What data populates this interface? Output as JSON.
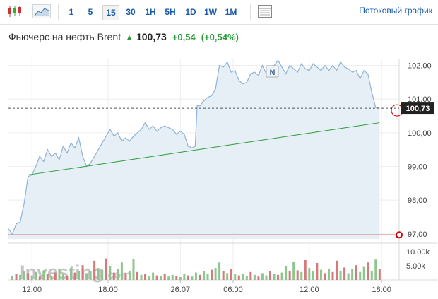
{
  "toolbar": {
    "intervals": [
      "1",
      "5",
      "15",
      "30",
      "1H",
      "5H",
      "1D",
      "1W",
      "1M"
    ],
    "active_interval": "15",
    "stream_label": "Потоковый график"
  },
  "header": {
    "name": "Фьючерс на нефть Brent",
    "price": "100,73",
    "change": "+0,54",
    "change_pct": "(+0,54%)"
  },
  "watermark": {
    "brand": "Investing",
    "suffix": ".com"
  },
  "news_marker": "N",
  "colors": {
    "area_fill": "#e6eef6",
    "area_line": "#8fb3d4",
    "trend": "#2a9d3a",
    "support": "#cc0000",
    "vol_up": "#8cc68c",
    "vol_down": "#d47a7a",
    "price_tag": "#222222"
  },
  "chart_data": {
    "type": "area",
    "x_tick_labels": [
      "12:00",
      "18:00",
      "26.07",
      "06:00",
      "12:00",
      "18:00"
    ],
    "y_ticks": [
      97,
      98,
      99,
      100,
      101,
      102
    ],
    "y_tick_labels": [
      "97,00",
      "98,00",
      "99,00",
      "100,00",
      "101,00",
      "102,00"
    ],
    "ylim": [
      96.85,
      102.2
    ],
    "x_range": [
      0,
      100
    ],
    "x_tick_positions": [
      6,
      25.5,
      44,
      57.5,
      77,
      95.5
    ],
    "last_price": 100.73,
    "last_price_label": "100,73",
    "series": [
      {
        "values": [
          [
            0,
            97.15
          ],
          [
            1,
            97.0
          ],
          [
            2,
            97.3
          ],
          [
            3,
            97.35
          ],
          [
            4,
            97.9
          ],
          [
            5,
            98.7
          ],
          [
            6,
            98.75
          ],
          [
            7,
            99.0
          ],
          [
            8,
            99.3
          ],
          [
            9,
            99.15
          ],
          [
            10,
            99.5
          ],
          [
            11,
            99.3
          ],
          [
            12,
            99.4
          ],
          [
            13,
            99.2
          ],
          [
            14,
            99.6
          ],
          [
            15,
            99.4
          ],
          [
            16,
            99.7
          ],
          [
            17,
            99.55
          ],
          [
            18,
            99.85
          ],
          [
            19,
            99.3
          ],
          [
            20,
            99.0
          ],
          [
            21,
            99.1
          ],
          [
            22,
            99.3
          ],
          [
            23,
            99.5
          ],
          [
            24,
            99.7
          ],
          [
            25,
            99.9
          ],
          [
            26,
            100.1
          ],
          [
            27,
            99.9
          ],
          [
            28,
            100.0
          ],
          [
            29,
            99.75
          ],
          [
            30,
            99.85
          ],
          [
            31,
            99.75
          ],
          [
            32,
            99.9
          ],
          [
            33,
            100.0
          ],
          [
            34,
            100.1
          ],
          [
            35,
            100.3
          ],
          [
            36,
            100.1
          ],
          [
            37,
            100.2
          ],
          [
            38,
            100.05
          ],
          [
            39,
            100.15
          ],
          [
            40,
            100.2
          ],
          [
            41,
            100.15
          ],
          [
            42,
            100.1
          ],
          [
            43,
            99.95
          ],
          [
            44,
            100.05
          ],
          [
            45,
            99.95
          ],
          [
            46,
            99.6
          ],
          [
            47,
            99.55
          ],
          [
            47.8,
            99.6
          ],
          [
            48.3,
            100.8
          ],
          [
            49,
            100.8
          ],
          [
            50,
            100.95
          ],
          [
            51,
            101.05
          ],
          [
            52,
            101.1
          ],
          [
            53,
            101.3
          ],
          [
            54,
            102.0
          ],
          [
            55,
            101.95
          ],
          [
            56,
            102.1
          ],
          [
            57,
            101.8
          ],
          [
            58,
            101.85
          ],
          [
            59,
            101.55
          ],
          [
            60,
            101.45
          ],
          [
            61,
            101.5
          ],
          [
            62,
            101.75
          ],
          [
            63,
            101.8
          ],
          [
            64,
            101.7
          ],
          [
            65,
            102.0
          ],
          [
            66,
            101.75
          ],
          [
            67,
            101.9
          ],
          [
            68,
            102.0
          ],
          [
            69,
            102.15
          ],
          [
            70,
            101.95
          ],
          [
            71,
            101.75
          ],
          [
            72,
            102.0
          ],
          [
            73,
            101.9
          ],
          [
            74,
            101.8
          ],
          [
            75,
            102.05
          ],
          [
            76,
            101.9
          ],
          [
            77,
            101.85
          ],
          [
            78,
            102.05
          ],
          [
            79,
            101.95
          ],
          [
            80,
            101.85
          ],
          [
            81,
            102.0
          ],
          [
            82,
            101.85
          ],
          [
            83,
            102.0
          ],
          [
            84,
            101.85
          ],
          [
            85,
            102.1
          ],
          [
            86,
            101.95
          ],
          [
            87,
            101.9
          ],
          [
            88,
            101.8
          ],
          [
            89,
            101.85
          ],
          [
            90,
            101.6
          ],
          [
            91,
            101.85
          ],
          [
            92,
            101.75
          ],
          [
            93,
            101.2
          ],
          [
            94,
            100.75
          ],
          [
            95,
            100.73
          ]
        ]
      }
    ],
    "trend_line": [
      [
        5,
        98.75
      ],
      [
        95,
        100.3
      ]
    ],
    "support_line": 96.97,
    "volume_scale": {
      "labels": [
        "10.00k",
        "5.00k"
      ],
      "values": [
        10000,
        5000
      ]
    },
    "volume": [
      [
        1,
        1500,
        1
      ],
      [
        2,
        2200,
        0
      ],
      [
        3,
        1800,
        1
      ],
      [
        4,
        3000,
        1
      ],
      [
        5,
        2400,
        0
      ],
      [
        6,
        1600,
        1
      ],
      [
        7,
        2800,
        1
      ],
      [
        8,
        1200,
        0
      ],
      [
        9,
        3400,
        1
      ],
      [
        10,
        2000,
        0
      ],
      [
        11,
        1500,
        1
      ],
      [
        12,
        2600,
        0
      ],
      [
        13,
        3800,
        1
      ],
      [
        14,
        2200,
        1
      ],
      [
        15,
        1400,
        0
      ],
      [
        16,
        4200,
        1
      ],
      [
        17,
        2600,
        0
      ],
      [
        18,
        3000,
        1
      ],
      [
        19,
        5200,
        0
      ],
      [
        20,
        2400,
        1
      ],
      [
        21,
        3200,
        1
      ],
      [
        22,
        6800,
        0
      ],
      [
        23,
        4200,
        1
      ],
      [
        24,
        3600,
        1
      ],
      [
        25,
        7600,
        0
      ],
      [
        26,
        4800,
        1
      ],
      [
        27,
        2600,
        0
      ],
      [
        28,
        3800,
        1
      ],
      [
        29,
        6200,
        1
      ],
      [
        30,
        2400,
        0
      ],
      [
        31,
        3200,
        1
      ],
      [
        32,
        7400,
        1
      ],
      [
        33,
        2800,
        0
      ],
      [
        34,
        1800,
        1
      ],
      [
        35,
        2200,
        0
      ],
      [
        36,
        1200,
        1
      ],
      [
        37,
        2600,
        1
      ],
      [
        38,
        1600,
        0
      ],
      [
        39,
        1400,
        1
      ],
      [
        40,
        2000,
        0
      ],
      [
        41,
        1200,
        1
      ],
      [
        42,
        1800,
        1
      ],
      [
        43,
        1400,
        0
      ],
      [
        44,
        1000,
        1
      ],
      [
        45,
        2200,
        1
      ],
      [
        46,
        1600,
        0
      ],
      [
        47,
        1200,
        1
      ],
      [
        48,
        2600,
        1
      ],
      [
        49,
        1800,
        0
      ],
      [
        50,
        3200,
        1
      ],
      [
        51,
        2000,
        1
      ],
      [
        52,
        3600,
        0
      ],
      [
        53,
        4200,
        1
      ],
      [
        54,
        6200,
        1
      ],
      [
        55,
        3000,
        0
      ],
      [
        56,
        2400,
        1
      ],
      [
        57,
        3800,
        0
      ],
      [
        58,
        2000,
        1
      ],
      [
        59,
        1600,
        0
      ],
      [
        60,
        2200,
        1
      ],
      [
        61,
        1400,
        1
      ],
      [
        62,
        2800,
        0
      ],
      [
        63,
        1800,
        1
      ],
      [
        64,
        1200,
        0
      ],
      [
        65,
        2400,
        1
      ],
      [
        66,
        1600,
        1
      ],
      [
        67,
        3000,
        0
      ],
      [
        68,
        2200,
        1
      ],
      [
        69,
        1800,
        0
      ],
      [
        70,
        2600,
        1
      ],
      [
        71,
        4800,
        1
      ],
      [
        72,
        3000,
        0
      ],
      [
        73,
        6400,
        1
      ],
      [
        74,
        3400,
        0
      ],
      [
        75,
        2800,
        1
      ],
      [
        76,
        7000,
        0
      ],
      [
        77,
        4200,
        1
      ],
      [
        78,
        3000,
        1
      ],
      [
        79,
        6000,
        0
      ],
      [
        80,
        3600,
        1
      ],
      [
        81,
        2400,
        0
      ],
      [
        82,
        4000,
        1
      ],
      [
        83,
        2800,
        0
      ],
      [
        84,
        6800,
        0
      ],
      [
        85,
        3200,
        1
      ],
      [
        86,
        4400,
        0
      ],
      [
        87,
        2400,
        1
      ],
      [
        88,
        3800,
        1
      ],
      [
        89,
        5200,
        0
      ],
      [
        90,
        2800,
        1
      ],
      [
        91,
        4600,
        1
      ],
      [
        92,
        6200,
        0
      ],
      [
        93,
        3000,
        1
      ],
      [
        94,
        7200,
        1
      ],
      [
        95,
        4000,
        0
      ]
    ]
  }
}
